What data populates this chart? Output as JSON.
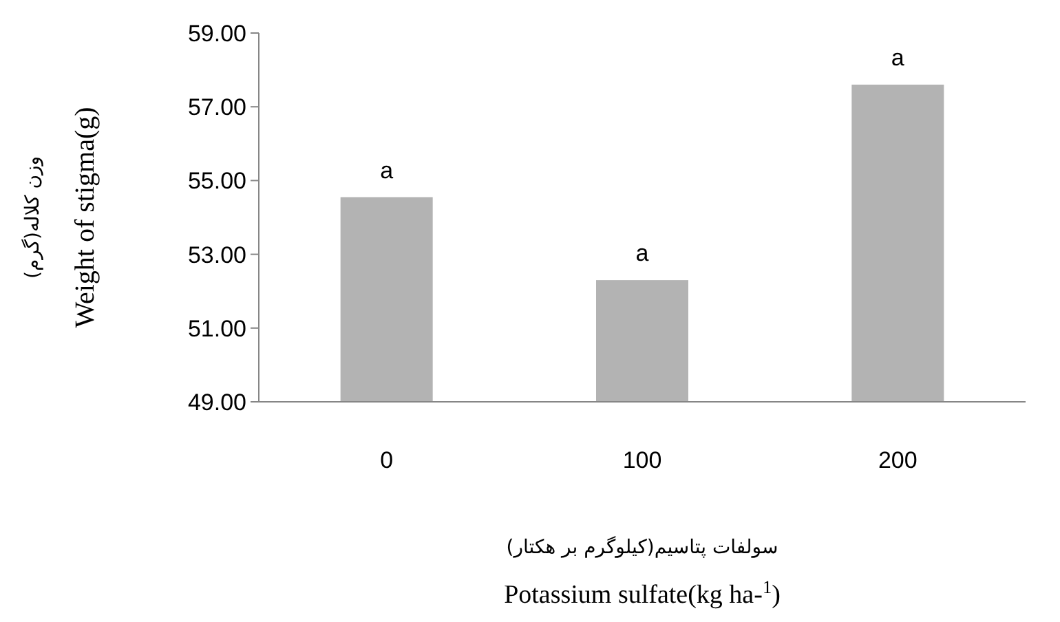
{
  "chart_data": {
    "type": "bar",
    "ylabel": "Weight of stigma(g)",
    "xlabel": "Potassium sulfate(kg ha-$^{1}$)",
    "categories": [
      "0",
      "100",
      "200"
    ],
    "values": [
      54.55,
      52.3,
      57.6
    ],
    "color": "#b3b3b3",
    "ylim": [
      49,
      59
    ],
    "yticks": [
      {
        "value": 49,
        "label": "49.00"
      },
      {
        "value": 51,
        "label": "51.00"
      },
      {
        "value": 53,
        "label": "53.00"
      },
      {
        "value": 55,
        "label": "55.00"
      },
      {
        "value": 57,
        "label": "57.00"
      },
      {
        "value": 59,
        "label": "59.00"
      }
    ],
    "grid": false,
    "annotations": [
      {
        "text": "a",
        "x": "0",
        "y": 54.55
      },
      {
        "text": "a",
        "x": "100",
        "y": 52.3
      },
      {
        "text": "a",
        "x": "200",
        "y": 57.6
      },
      "وزن کلاله(گرم)",
      "سولفات پتاسیم(کیلوگرم بر هکتار)"
    ]
  }
}
